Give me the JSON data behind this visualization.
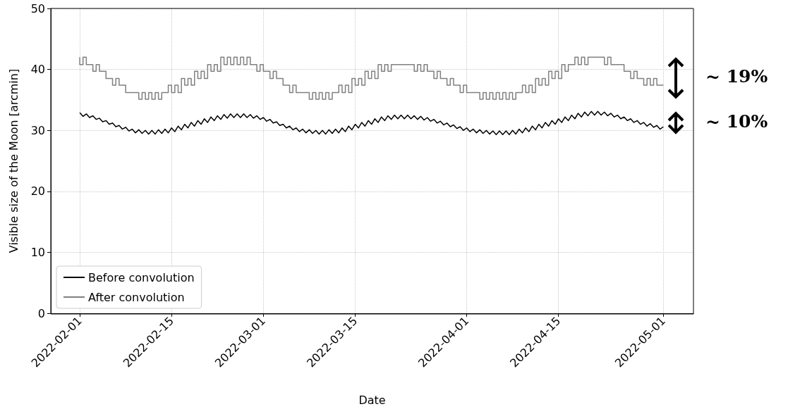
{
  "chart_data": {
    "type": "line",
    "xlabel": "Date",
    "ylabel": "Visible size of the Moon [arcmin]",
    "xlim": [
      "2022-01-27T14:00",
      "2022-05-05T14:00"
    ],
    "xticks": [
      "2022-02-01",
      "2022-02-15",
      "2022-03-01",
      "2022-03-15",
      "2022-04-01",
      "2022-04-15",
      "2022-05-01"
    ],
    "ylim": [
      0,
      50
    ],
    "yticks": [
      0,
      10,
      20,
      30,
      40,
      50
    ],
    "grid": true,
    "legend": "bottom left",
    "marker": "none",
    "line_style": "solid",
    "annotations": [
      "~ 19%",
      "~ 10%"
    ],
    "x": [
      "2022-02-01T00:00",
      "2022-02-01T12:00",
      "2022-02-02T00:00",
      "2022-02-02T12:00",
      "2022-02-03T00:00",
      "2022-02-03T12:00",
      "2022-02-04T00:00",
      "2022-02-04T12:00",
      "2022-02-05T00:00",
      "2022-02-05T12:00",
      "2022-02-06T00:00",
      "2022-02-06T12:00",
      "2022-02-07T00:00",
      "2022-02-07T12:00",
      "2022-02-08T00:00",
      "2022-02-08T12:00",
      "2022-02-09T00:00",
      "2022-02-09T12:00",
      "2022-02-10T00:00",
      "2022-02-10T12:00",
      "2022-02-11T00:00",
      "2022-02-11T12:00",
      "2022-02-12T00:00",
      "2022-02-12T12:00",
      "2022-02-13T00:00",
      "2022-02-13T12:00",
      "2022-02-14T00:00",
      "2022-02-14T12:00",
      "2022-02-15T00:00",
      "2022-02-15T12:00",
      "2022-02-16T00:00",
      "2022-02-16T12:00",
      "2022-02-17T00:00",
      "2022-02-17T12:00",
      "2022-02-18T00:00",
      "2022-02-18T12:00",
      "2022-02-19T00:00",
      "2022-02-19T12:00",
      "2022-02-20T00:00",
      "2022-02-20T12:00",
      "2022-02-21T00:00",
      "2022-02-21T12:00",
      "2022-02-22T00:00",
      "2022-02-22T12:00",
      "2022-02-23T00:00",
      "2022-02-23T12:00",
      "2022-02-24T00:00",
      "2022-02-24T12:00",
      "2022-02-25T00:00",
      "2022-02-25T12:00",
      "2022-02-26T00:00",
      "2022-02-26T12:00",
      "2022-02-27T00:00",
      "2022-02-27T12:00",
      "2022-02-28T00:00",
      "2022-02-28T12:00",
      "2022-03-01T00:00",
      "2022-03-01T12:00",
      "2022-03-02T00:00",
      "2022-03-02T12:00",
      "2022-03-03T00:00",
      "2022-03-03T12:00",
      "2022-03-04T00:00",
      "2022-03-04T12:00",
      "2022-03-05T00:00",
      "2022-03-05T12:00",
      "2022-03-06T00:00",
      "2022-03-06T12:00",
      "2022-03-07T00:00",
      "2022-03-07T12:00",
      "2022-03-08T00:00",
      "2022-03-08T12:00",
      "2022-03-09T00:00",
      "2022-03-09T12:00",
      "2022-03-10T00:00",
      "2022-03-10T12:00",
      "2022-03-11T00:00",
      "2022-03-11T12:00",
      "2022-03-12T00:00",
      "2022-03-12T12:00",
      "2022-03-13T00:00",
      "2022-03-13T12:00",
      "2022-03-14T00:00",
      "2022-03-14T12:00",
      "2022-03-15T00:00",
      "2022-03-15T12:00",
      "2022-03-16T00:00",
      "2022-03-16T12:00",
      "2022-03-17T00:00",
      "2022-03-17T12:00",
      "2022-03-18T00:00",
      "2022-03-18T12:00",
      "2022-03-19T00:00",
      "2022-03-19T12:00",
      "2022-03-20T00:00",
      "2022-03-20T12:00",
      "2022-03-21T00:00",
      "2022-03-21T12:00",
      "2022-03-22T00:00",
      "2022-03-22T12:00",
      "2022-03-23T00:00",
      "2022-03-23T12:00",
      "2022-03-24T00:00",
      "2022-03-24T12:00",
      "2022-03-25T00:00",
      "2022-03-25T12:00",
      "2022-03-26T00:00",
      "2022-03-26T12:00",
      "2022-03-27T00:00",
      "2022-03-27T12:00",
      "2022-03-28T00:00",
      "2022-03-28T12:00",
      "2022-03-29T00:00",
      "2022-03-29T12:00",
      "2022-03-30T00:00",
      "2022-03-30T12:00",
      "2022-03-31T00:00",
      "2022-03-31T12:00",
      "2022-04-01T00:00",
      "2022-04-01T12:00",
      "2022-04-02T00:00",
      "2022-04-02T12:00",
      "2022-04-03T00:00",
      "2022-04-03T12:00",
      "2022-04-04T00:00",
      "2022-04-04T12:00",
      "2022-04-05T00:00",
      "2022-04-05T12:00",
      "2022-04-06T00:00",
      "2022-04-06T12:00",
      "2022-04-07T00:00",
      "2022-04-07T12:00",
      "2022-04-08T00:00",
      "2022-04-08T12:00",
      "2022-04-09T00:00",
      "2022-04-09T12:00",
      "2022-04-10T00:00",
      "2022-04-10T12:00",
      "2022-04-11T00:00",
      "2022-04-11T12:00",
      "2022-04-12T00:00",
      "2022-04-12T12:00",
      "2022-04-13T00:00",
      "2022-04-13T12:00",
      "2022-04-14T00:00",
      "2022-04-14T12:00",
      "2022-04-15T00:00",
      "2022-04-15T12:00",
      "2022-04-16T00:00",
      "2022-04-16T12:00",
      "2022-04-17T00:00",
      "2022-04-17T12:00",
      "2022-04-18T00:00",
      "2022-04-18T12:00",
      "2022-04-19T00:00",
      "2022-04-19T12:00",
      "2022-04-20T00:00",
      "2022-04-20T12:00",
      "2022-04-21T00:00",
      "2022-04-21T12:00",
      "2022-04-22T00:00",
      "2022-04-22T12:00",
      "2022-04-23T00:00",
      "2022-04-23T12:00",
      "2022-04-24T00:00",
      "2022-04-24T12:00",
      "2022-04-25T00:00",
      "2022-04-25T12:00",
      "2022-04-26T00:00",
      "2022-04-26T12:00",
      "2022-04-27T00:00",
      "2022-04-27T12:00",
      "2022-04-28T00:00",
      "2022-04-28T12:00",
      "2022-04-29T00:00",
      "2022-04-29T12:00",
      "2022-04-30T00:00",
      "2022-04-30T12:00",
      "2022-05-01T00:00"
    ],
    "series": [
      {
        "name": "Before convolution",
        "color": "#000000",
        "values": [
          32.9,
          32.3,
          32.7,
          32.1,
          32.4,
          31.8,
          32.0,
          31.4,
          31.6,
          31.0,
          31.2,
          30.6,
          30.8,
          30.2,
          30.5,
          29.9,
          30.2,
          29.6,
          30.1,
          29.5,
          30.0,
          29.4,
          30.0,
          29.4,
          30.1,
          29.5,
          30.2,
          29.6,
          30.4,
          29.8,
          30.7,
          30.1,
          31.0,
          30.4,
          31.3,
          30.7,
          31.6,
          31.0,
          31.9,
          31.3,
          32.2,
          31.6,
          32.4,
          31.8,
          32.6,
          32.0,
          32.7,
          32.1,
          32.7,
          32.1,
          32.7,
          32.1,
          32.6,
          32.0,
          32.4,
          31.8,
          32.1,
          31.5,
          31.8,
          31.2,
          31.4,
          30.8,
          31.0,
          30.4,
          30.7,
          30.1,
          30.4,
          29.8,
          30.2,
          29.6,
          30.1,
          29.5,
          30.0,
          29.4,
          30.0,
          29.4,
          30.1,
          29.5,
          30.2,
          29.6,
          30.4,
          29.8,
          30.7,
          30.1,
          31.0,
          30.4,
          31.3,
          30.7,
          31.6,
          31.0,
          31.9,
          31.3,
          32.2,
          31.6,
          32.4,
          31.8,
          32.5,
          31.9,
          32.5,
          31.9,
          32.5,
          31.9,
          32.4,
          31.8,
          32.3,
          31.7,
          32.1,
          31.5,
          31.8,
          31.2,
          31.5,
          30.9,
          31.2,
          30.6,
          30.9,
          30.3,
          30.6,
          30.0,
          30.4,
          29.8,
          30.2,
          29.6,
          30.1,
          29.5,
          30.0,
          29.4,
          29.9,
          29.3,
          29.9,
          29.3,
          29.9,
          29.3,
          30.0,
          29.4,
          30.2,
          29.6,
          30.4,
          29.8,
          30.7,
          30.1,
          31.0,
          30.4,
          31.3,
          30.7,
          31.6,
          31.0,
          31.9,
          31.3,
          32.2,
          31.6,
          32.5,
          31.9,
          32.8,
          32.2,
          33.0,
          32.4,
          33.1,
          32.5,
          33.1,
          32.5,
          33.0,
          32.4,
          32.8,
          32.2,
          32.5,
          31.9,
          32.2,
          31.6,
          31.9,
          31.3,
          31.6,
          31.0,
          31.3,
          30.7,
          31.1,
          30.5,
          30.8,
          30.2,
          30.6
        ]
      },
      {
        "name": "After convolution",
        "type": "step",
        "color": "#808080",
        "values": [
          42.0,
          40.8,
          42.0,
          40.8,
          40.8,
          39.7,
          40.8,
          39.7,
          39.7,
          38.5,
          38.5,
          37.4,
          38.5,
          37.4,
          37.4,
          36.2,
          36.2,
          36.2,
          36.2,
          35.1,
          36.2,
          35.1,
          36.2,
          35.1,
          36.2,
          35.1,
          36.2,
          36.2,
          37.4,
          36.2,
          37.4,
          36.2,
          38.5,
          37.4,
          38.5,
          37.4,
          39.7,
          38.5,
          39.7,
          38.5,
          40.8,
          39.7,
          40.8,
          39.7,
          42.0,
          40.8,
          42.0,
          40.8,
          42.0,
          40.8,
          42.0,
          40.8,
          42.0,
          40.8,
          40.8,
          39.7,
          40.8,
          39.7,
          39.7,
          38.5,
          39.7,
          38.5,
          38.5,
          37.4,
          37.4,
          36.2,
          37.4,
          36.2,
          36.2,
          36.2,
          36.2,
          35.1,
          36.2,
          35.1,
          36.2,
          35.1,
          36.2,
          35.1,
          36.2,
          36.2,
          37.4,
          36.2,
          37.4,
          36.2,
          38.5,
          37.4,
          38.5,
          37.4,
          39.7,
          38.5,
          39.7,
          38.5,
          40.8,
          39.7,
          40.8,
          39.7,
          40.8,
          40.8,
          40.8,
          40.8,
          40.8,
          40.8,
          40.8,
          39.7,
          40.8,
          39.7,
          40.8,
          39.7,
          39.7,
          38.5,
          39.7,
          38.5,
          38.5,
          37.4,
          38.5,
          37.4,
          37.4,
          36.2,
          37.4,
          36.2,
          36.2,
          36.2,
          36.2,
          35.1,
          36.2,
          35.1,
          36.2,
          35.1,
          36.2,
          35.1,
          36.2,
          35.1,
          36.2,
          35.1,
          36.2,
          36.2,
          37.4,
          36.2,
          37.4,
          36.2,
          38.5,
          37.4,
          38.5,
          37.4,
          39.7,
          38.5,
          39.7,
          38.5,
          40.8,
          39.7,
          40.8,
          40.8,
          42.0,
          40.8,
          42.0,
          40.8,
          42.0,
          42.0,
          42.0,
          42.0,
          42.0,
          40.8,
          42.0,
          40.8,
          40.8,
          40.8,
          40.8,
          39.7,
          39.7,
          38.5,
          39.7,
          38.5,
          38.5,
          37.4,
          38.5,
          37.4,
          38.5,
          37.4,
          37.4
        ]
      }
    ]
  }
}
